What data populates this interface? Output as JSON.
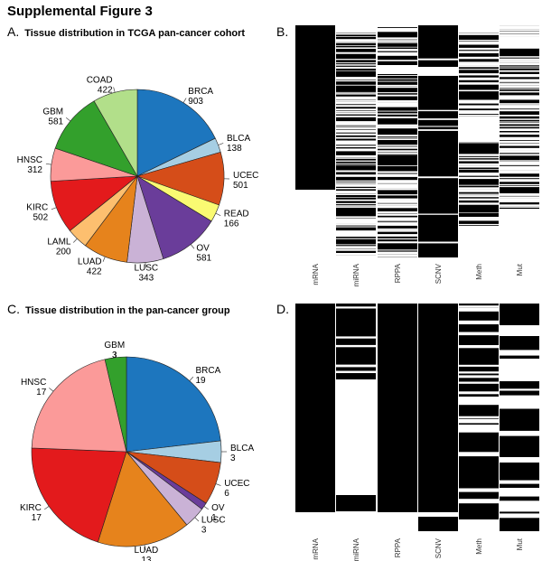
{
  "figure_title": "Supplemental Figure 3",
  "panels": {
    "A": {
      "label": "A.",
      "title": "Tissue distribution in TCGA pan-cancer cohort"
    },
    "B": {
      "label": "B."
    },
    "C": {
      "label": "C.",
      "title": "Tissue distribution in the pan-cancer group"
    },
    "D": {
      "label": "D."
    }
  },
  "chart_data": [
    {
      "panel": "A",
      "type": "pie",
      "title": "Tissue distribution in TCGA pan-cancer cohort",
      "slices": [
        {
          "name": "BRCA",
          "value": 903,
          "color": "#1d76be"
        },
        {
          "name": "BLCA",
          "value": 138,
          "color": "#a6cee3"
        },
        {
          "name": "UCEC",
          "value": 501,
          "color": "#d54d19"
        },
        {
          "name": "READ",
          "value": 166,
          "color": "#fafa72"
        },
        {
          "name": "OV",
          "value": 581,
          "color": "#6a3d9a"
        },
        {
          "name": "LUSC",
          "value": 343,
          "color": "#cab2d6"
        },
        {
          "name": "LUAD",
          "value": 422,
          "color": "#e6831c"
        },
        {
          "name": "LAML",
          "value": 200,
          "color": "#fdbf6f"
        },
        {
          "name": "KIRC",
          "value": 502,
          "color": "#e31a1c"
        },
        {
          "name": "HNSC",
          "value": 312,
          "color": "#fb9a99"
        },
        {
          "name": "GBM",
          "value": 581,
          "color": "#33a02c"
        },
        {
          "name": "COAD",
          "value": 422,
          "color": "#b2df8a"
        }
      ]
    },
    {
      "panel": "B",
      "type": "heatmap",
      "columns": [
        "mRNA",
        "miRNA",
        "RPPA",
        "SCNV",
        "Meth",
        "Mut"
      ]
    },
    {
      "panel": "C",
      "type": "pie",
      "title": "Tissue distribution in the pan-cancer group",
      "slices": [
        {
          "name": "BRCA",
          "value": 19,
          "color": "#1d76be"
        },
        {
          "name": "BLCA",
          "value": 3,
          "color": "#a6cee3"
        },
        {
          "name": "UCEC",
          "value": 6,
          "color": "#d54d19"
        },
        {
          "name": "OV",
          "value": 1,
          "color": "#6a3d9a"
        },
        {
          "name": "LUSC",
          "value": 3,
          "color": "#cab2d6"
        },
        {
          "name": "LUAD",
          "value": 13,
          "color": "#e6831c"
        },
        {
          "name": "KIRC",
          "value": 17,
          "color": "#e31a1c"
        },
        {
          "name": "HNSC",
          "value": 17,
          "color": "#fb9a99"
        },
        {
          "name": "GBM",
          "value": 3,
          "color": "#33a02c"
        }
      ]
    },
    {
      "panel": "D",
      "type": "heatmap",
      "columns": [
        "mRNA",
        "miRNA",
        "RPPA",
        "SCNV",
        "Meth",
        "Mut"
      ]
    }
  ]
}
